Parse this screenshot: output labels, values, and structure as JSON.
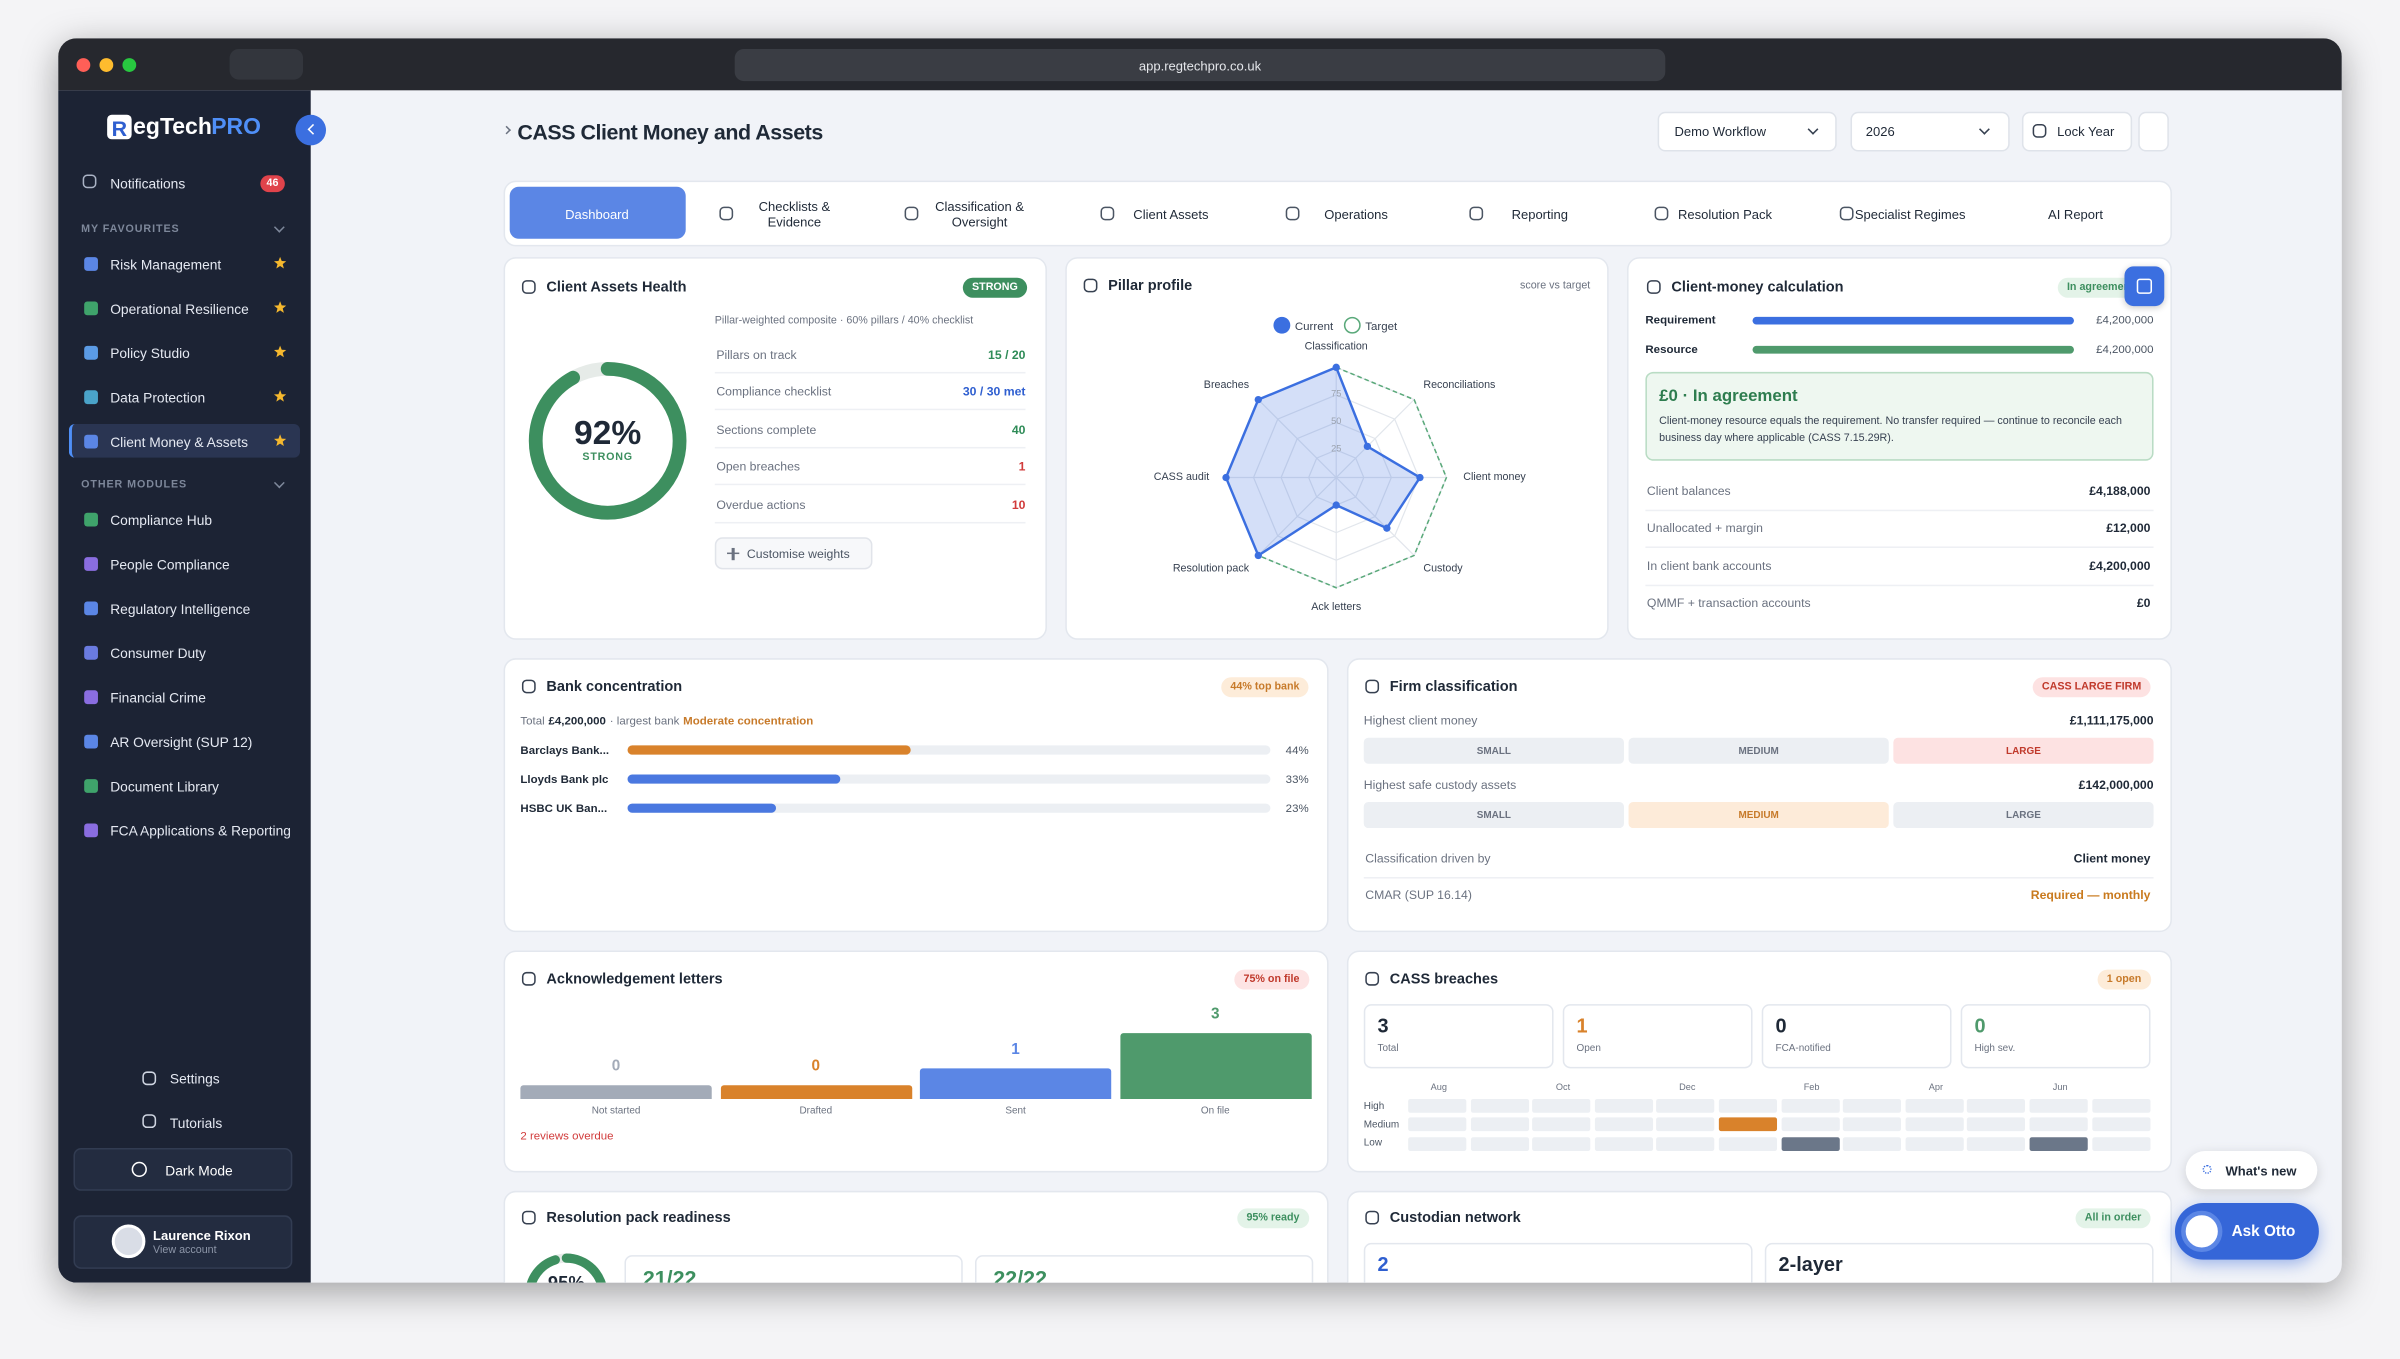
{
  "browser": {
    "url": "app.regtechpro.co.uk"
  },
  "sidebar": {
    "logo_initial": "R",
    "logo_text": "egTech",
    "logo_accent": "PRO",
    "notifications": "Notifications",
    "notification_count": 46,
    "favourites_heading": "MY FAVOURITES",
    "favourites": [
      "Risk Management",
      "Operational Resilience",
      "Policy Studio",
      "Data Protection",
      "Client Money & Assets"
    ],
    "modules_heading": "OTHER MODULES",
    "modules": [
      "Compliance Hub",
      "People Compliance",
      "Regulatory Intelligence",
      "Consumer Duty",
      "Financial Crime",
      "AR Oversight (SUP 12)",
      "Document Library",
      "FCA Applications & Reporting"
    ],
    "settings": "Settings",
    "tutorials": "Tutorials",
    "dark_mode": "Dark Mode",
    "user_name": "Laurence Rixon",
    "user_link": "View account"
  },
  "header": {
    "title": "CASS Client Money and Assets",
    "workflow": "Demo Workflow",
    "year": "2026",
    "lock": "Lock Year"
  },
  "tabs": [
    "Dashboard",
    "Checklists & Evidence",
    "Classification & Oversight",
    "Client Assets",
    "Operations",
    "Reporting",
    "Resolution Pack",
    "Specialist Regimes",
    "AI Report"
  ],
  "health": {
    "title": "Client Assets Health",
    "badge": "STRONG",
    "subtitle": "Pillar-weighted composite · 60% pillars / 40% checklist",
    "score": {
      "value": 92,
      "label": "92%"
    },
    "score_caption": "STRONG",
    "rows": [
      {
        "label": "Pillars on track",
        "value": "15 / 20",
        "color": "#2e8b57"
      },
      {
        "label": "Compliance checklist",
        "value": "30 / 30 met",
        "color": "#2f5fd0"
      },
      {
        "label": "Sections complete",
        "value": "40",
        "color": "#2e8b57"
      },
      {
        "label": "Open breaches",
        "value": "1",
        "color": "#d13b3b"
      },
      {
        "label": "Overdue actions",
        "value": "10",
        "color": "#d13b3b"
      }
    ],
    "button": "Customise weights"
  },
  "pillars": {
    "title": "Pillar profile",
    "note": "score vs target",
    "axes": [
      "Classification",
      "Reconciliations",
      "Client money",
      "Custody",
      "Ack letters",
      "Resolution pack",
      "CASS audit",
      "Breaches"
    ],
    "series": [
      {
        "name": "Current",
        "color": "#3b6fe0",
        "values": [
          100,
          40,
          76,
          65,
          25,
          100,
          100,
          100
        ]
      },
      {
        "name": "Target",
        "color": "#5aa97a",
        "values": [
          100,
          100,
          100,
          100,
          100,
          100,
          100,
          100
        ]
      }
    ],
    "rlim": [
      0,
      100
    ],
    "rticks": [
      25,
      50,
      75
    ]
  },
  "calc": {
    "title": "Client-money calculation",
    "badge": "In agreement",
    "categories": [
      "Requirement",
      "Resource"
    ],
    "values": [
      4200000,
      4200000
    ],
    "value_labels": [
      "£4,200,000",
      "£4,200,000"
    ],
    "colors": [
      "#3b6fe0",
      "#4f9a6c"
    ],
    "status_title": "£0 · In agreement",
    "status_text": "Client-money resource equals the requirement. No transfer required — continue to reconcile each business day where applicable (CASS 7.15.29R).",
    "rows": [
      {
        "label": "Client balances",
        "value": "£4,188,000"
      },
      {
        "label": "Unallocated + margin",
        "value": "£12,000"
      },
      {
        "label": "In client bank accounts",
        "value": "£4,200,000"
      },
      {
        "label": "QMMF + transaction accounts",
        "value": "£0"
      }
    ]
  },
  "bank": {
    "title": "Bank concentration",
    "badge": "44% top bank",
    "total_prefix": "Total",
    "total": "£4,200,000",
    "total_suffix": "· largest bank",
    "concentration": "Moderate concentration",
    "xlim": [
      0,
      100
    ],
    "categories": [
      "Barclays Bank...",
      "Lloyds Bank plc",
      "HSBC UK Ban..."
    ],
    "values": [
      44,
      33,
      23
    ],
    "value_labels": [
      "44%",
      "33%",
      "23%"
    ],
    "colors": [
      "#d9822b",
      "#4a78e0",
      "#4a78e0"
    ]
  },
  "firm": {
    "title": "Firm classification",
    "badge": "CASS LARGE FIRM",
    "measures": [
      {
        "label": "Highest client money",
        "value": "£1,111,175,000",
        "levels": [
          "SMALL",
          "MEDIUM",
          "LARGE"
        ],
        "active": 2,
        "active_bg": "#fde2e2",
        "active_text": "#c0392b"
      },
      {
        "label": "Highest safe custody assets",
        "value": "£142,000,000",
        "levels": [
          "SMALL",
          "MEDIUM",
          "LARGE"
        ],
        "active": 1,
        "active_bg": "#fdebd9",
        "active_text": "#c77a2a"
      }
    ],
    "rows": [
      {
        "label": "Classification driven by",
        "value": "Client money",
        "color": "#1f2937"
      },
      {
        "label": "CMAR (SUP 16.14)",
        "value": "Required — monthly",
        "color": "#c97a1e"
      }
    ]
  },
  "ack": {
    "title": "Acknowledgement letters",
    "badge": "75% on file",
    "categories": [
      "Not started",
      "Drafted",
      "Sent",
      "On file"
    ],
    "values": [
      0,
      0,
      1,
      3
    ],
    "colors": [
      "#a3abb8",
      "#d9822b",
      "#5b86e5",
      "#4f9a6c"
    ],
    "note": "2 reviews overdue"
  },
  "breaches": {
    "title": "CASS breaches",
    "badge": "1 open",
    "stats": [
      {
        "value": 3,
        "label": "Total",
        "color": "#1f2937"
      },
      {
        "value": 1,
        "label": "Open",
        "color": "#d9822b"
      },
      {
        "value": 0,
        "label": "FCA-notified",
        "color": "#1f2937"
      },
      {
        "value": 0,
        "label": "High sev.",
        "color": "#4f9a6c"
      }
    ],
    "heatmap": {
      "columns": [
        "Aug",
        null,
        "Oct",
        null,
        "Dec",
        null,
        "Feb",
        null,
        "Apr",
        null,
        "Jun",
        null
      ],
      "rows": [
        "High",
        "Medium",
        "Low"
      ],
      "values": [
        [
          0,
          0,
          0,
          0,
          0,
          0,
          0,
          0,
          0,
          0,
          0,
          0
        ],
        [
          0,
          0,
          0,
          0,
          0,
          1,
          0,
          0,
          0,
          0,
          0,
          0
        ],
        [
          0,
          0,
          0,
          0,
          0,
          0,
          1,
          0,
          0,
          0,
          1,
          0
        ]
      ],
      "colors": [
        "#c0392b",
        "#d9822b",
        "#6b7789"
      ],
      "empty_color": "#eceff3"
    }
  },
  "resolution": {
    "title": "Resolution pack readiness",
    "badge": "95% ready",
    "score": {
      "value": 95,
      "label": "95%"
    },
    "tiles": [
      "21/22",
      "22/22"
    ]
  },
  "custodian": {
    "title": "Custodian network",
    "badge": "All in order",
    "tiles": [
      "2",
      "2-layer"
    ]
  },
  "floating": {
    "whats_new": "What's new",
    "ask": "Ask Otto"
  }
}
